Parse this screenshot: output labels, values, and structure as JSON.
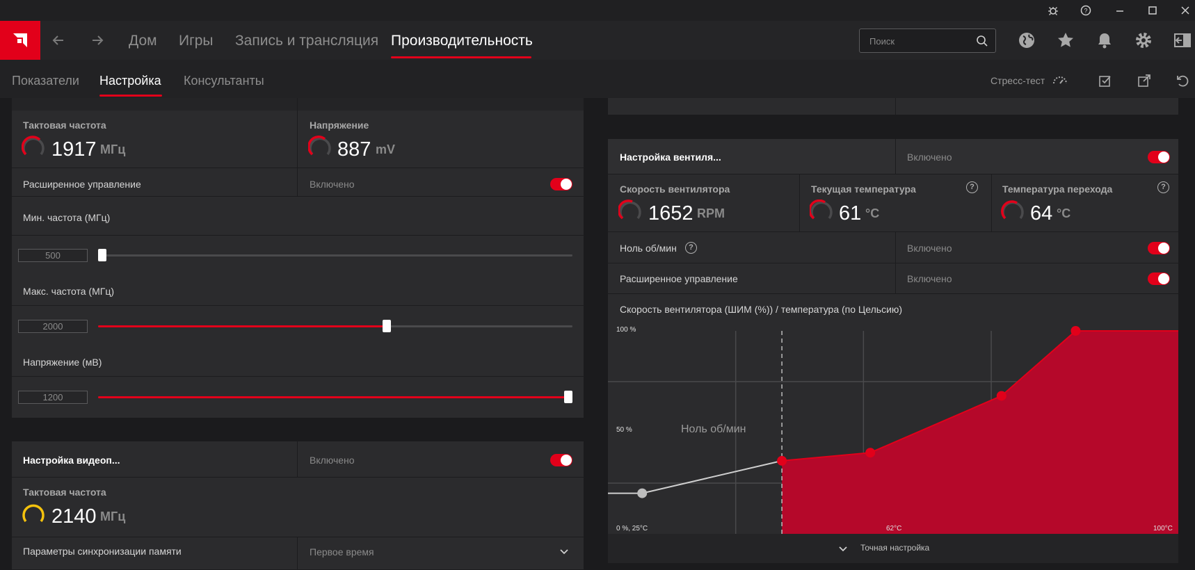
{
  "app": {
    "nav": {
      "home": "Дом",
      "games": "Игры",
      "record": "Запись и трансляция",
      "performance": "Производительность"
    },
    "search_placeholder": "Поиск",
    "subnav": {
      "metrics": "Показатели",
      "tuning": "Настройка",
      "advisors": "Консультанты"
    },
    "stress_test": "Стресс-тест"
  },
  "gpu": {
    "clock_label": "Тактовая частота",
    "clock_value": "1917",
    "clock_unit": "МГц",
    "voltage_label": "Напряжение",
    "voltage_value": "887",
    "voltage_unit": "mV",
    "advanced_label": "Расширенное управление",
    "advanced_state": "Включено",
    "min_freq_label": "Мин. частота (МГц)",
    "min_freq_value": "500",
    "min_freq_fraction": 0.0,
    "max_freq_label": "Макс. частота (МГц)",
    "max_freq_value": "2000",
    "max_freq_fraction": 0.61,
    "voltage_mv_label": "Напряжение (мВ)",
    "voltage_mv_value": "1200",
    "voltage_mv_fraction": 1.0
  },
  "vram": {
    "header": "Настройка видеоп...",
    "state": "Включено",
    "clock_label": "Тактовая частота",
    "clock_value": "2140",
    "clock_unit": "МГц",
    "timing_label": "Параметры синхронизации памяти",
    "timing_value": "Первое время"
  },
  "fan": {
    "header": "Настройка вентиля...",
    "state": "Включено",
    "speed_label": "Скорость вентилятора",
    "speed_value": "1652",
    "speed_unit": "RPM",
    "temp_label": "Текущая температура",
    "temp_value": "61",
    "temp_unit": "°C",
    "junction_label": "Температура перехода",
    "junction_value": "64",
    "junction_unit": "°C",
    "zero_rpm_label": "Ноль об/мин",
    "zero_rpm_state": "Включено",
    "advanced_label": "Расширенное управление",
    "advanced_state": "Включено",
    "curve_title": "Скорость вентилятора (ШИМ (%)) / температура (по Цельсию)",
    "fine_tune": "Точная настройка"
  },
  "chart_data": {
    "type": "area",
    "title": "Скорость вентилятора (ШИМ (%)) / температура (по Цельсию)",
    "y_tick_labels": [
      "100 %",
      "50 %"
    ],
    "x_tick_labels": [
      "0 %, 25°C",
      "62°C",
      "100°C"
    ],
    "zero_rpm_annotation": "Ноль об/мин",
    "zero_rpm_threshold_x": 0.305,
    "points": [
      {
        "x": 0.06,
        "y": 0.2
      },
      {
        "x": 0.305,
        "y": 0.36
      },
      {
        "x": 0.46,
        "y": 0.4
      },
      {
        "x": 0.69,
        "y": 0.68
      },
      {
        "x": 0.82,
        "y": 1.0
      }
    ],
    "colors": {
      "active_fill": "#b5082a",
      "active_line": "#e2001a",
      "inactive_line": "#cfcfcf",
      "inactive_point": "#bdbdbd"
    }
  }
}
